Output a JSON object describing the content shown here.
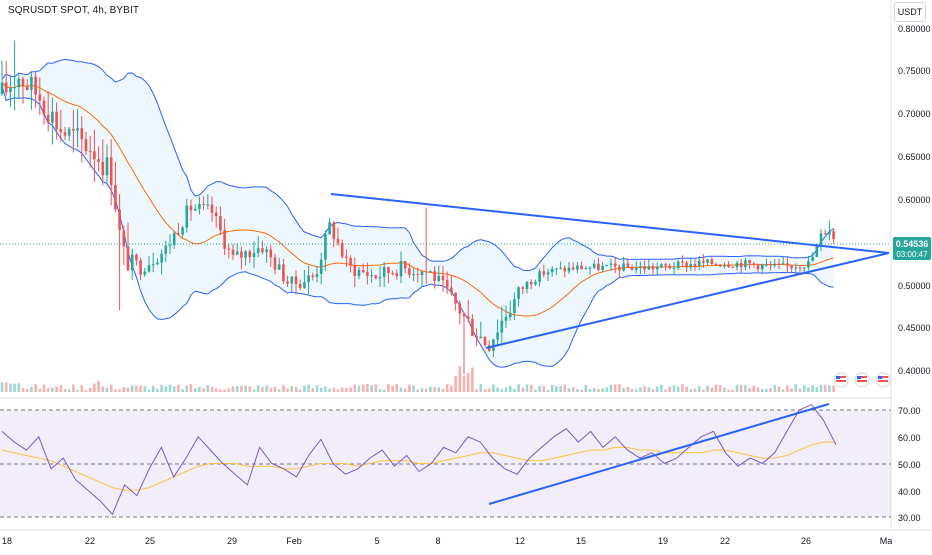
{
  "header": {
    "symbol_line": "SQRUSDT SPOT, 4h, BYBIT"
  },
  "currency_badge": "USDT",
  "price_badge": {
    "price": "0.54536",
    "countdown": "03:00:47",
    "color": "#26a69a"
  },
  "colors": {
    "up": "#26a69a",
    "down": "#ef5350",
    "bollinger": "#2962ff",
    "bollinger_fill": "rgba(33,150,243,0.08)",
    "sma": "#ff6d00",
    "trendline": "#2962ff",
    "rsi": "#7e57c2",
    "rsi_ma": "#f5c542",
    "rsi_band_fill": "rgba(126,87,194,0.10)"
  },
  "chart_data": [
    {
      "type": "candlestick",
      "title": "SQRUSDT SPOT, 4h, BYBIT",
      "x_ticks": [
        "18",
        "22",
        "25",
        "29",
        "Feb",
        "5",
        "8",
        "12",
        "15",
        "19",
        "22",
        "26",
        "Ma"
      ],
      "y_ticks": [
        "0.80000",
        "0.75000",
        "0.70000",
        "0.65000",
        "0.60000",
        "0.55000",
        "0.50000",
        "0.45000",
        "0.40000"
      ],
      "ylim": [
        0.384,
        0.82
      ],
      "key_points": {
        "start_high": 0.785,
        "late_jan_low": 0.47,
        "feb_spike_high": 0.59,
        "feb_low": 0.425,
        "last_high": 0.575,
        "current_price": 0.54536
      },
      "trendlines": [
        {
          "name": "upper",
          "from": {
            "x": "Feb 2",
            "y": 0.605
          },
          "to": {
            "x": "Mar 1",
            "y": 0.537
          }
        },
        {
          "name": "lower",
          "from": {
            "x": "Feb 10",
            "y": 0.427
          },
          "to": {
            "x": "Mar 1",
            "y": 0.537
          }
        }
      ],
      "indicators": [
        "Bollinger Bands",
        "SMA",
        "Volume"
      ],
      "grid": false
    },
    {
      "type": "line",
      "title": "",
      "series": [
        {
          "values": [
            62,
            58,
            55,
            60,
            48,
            52,
            44,
            40,
            36,
            31,
            42,
            38,
            48,
            56,
            45,
            52,
            60,
            55,
            50,
            46,
            42,
            56,
            50,
            48,
            45,
            53,
            59,
            50,
            46,
            48,
            52,
            55,
            49,
            53,
            47,
            50,
            56,
            54,
            60,
            58,
            52,
            48,
            46,
            52,
            56,
            60,
            63,
            58,
            62,
            56,
            60,
            55,
            52,
            54,
            50,
            52,
            56,
            60,
            62,
            54,
            49,
            52,
            50,
            54,
            62,
            70,
            72,
            66,
            57
          ]
        },
        {
          "values": [
            55,
            54,
            53,
            52,
            51,
            49,
            47,
            45,
            43,
            41,
            40,
            40,
            41,
            43,
            45,
            47,
            49,
            50,
            50,
            50,
            49,
            49,
            49,
            48,
            48,
            49,
            50,
            50,
            50,
            49,
            50,
            51,
            51,
            51,
            50,
            50,
            51,
            52,
            53,
            54,
            54,
            53,
            52,
            51,
            51,
            52,
            53,
            54,
            55,
            55,
            56,
            56,
            55,
            55,
            54,
            54,
            54,
            54,
            55,
            55,
            54,
            53,
            52,
            52,
            53,
            55,
            57,
            58,
            58
          ]
        }
      ],
      "y_ticks": [
        "70.00",
        "60.00",
        "50.00",
        "40.00",
        "30.00"
      ],
      "ylim": [
        27,
        75
      ],
      "bands": [
        70,
        50,
        30
      ],
      "trendline": {
        "from": {
          "x": "Feb 10",
          "y": 35
        },
        "to": {
          "x": "Feb 27",
          "y": 73
        }
      }
    }
  ]
}
